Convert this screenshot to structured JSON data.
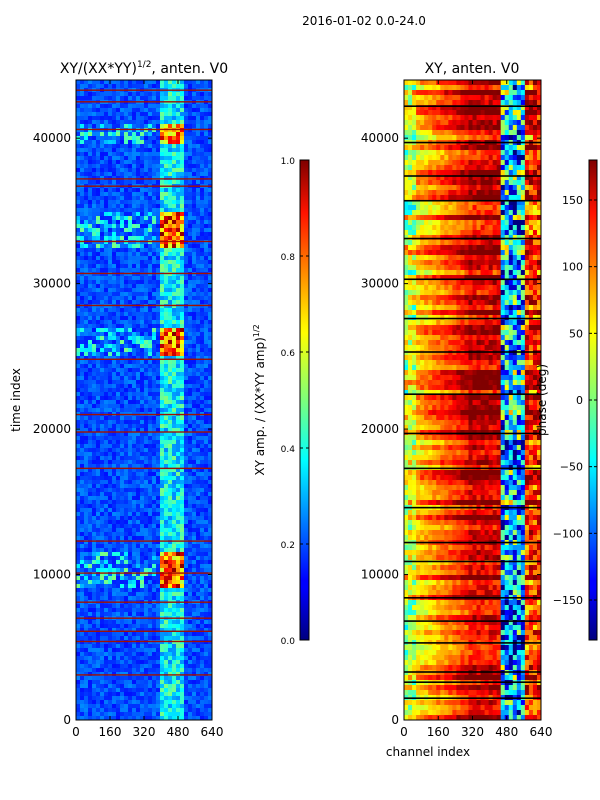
{
  "figure": {
    "suptitle": "2016-01-02 0.0-24.0"
  },
  "chart_data": [
    {
      "type": "heatmap",
      "title_main": "XY/(XX*YY)",
      "title_exp": "1/2",
      "title_tail": ", anten. V0",
      "xlabel": "",
      "ylabel": "time index",
      "xlim": [
        0,
        640
      ],
      "ylim": [
        0,
        44000
      ],
      "xticks": [
        0,
        160,
        320,
        480,
        640
      ],
      "yticks": [
        0,
        10000,
        20000,
        30000,
        40000
      ],
      "colormap": "jet",
      "colorbar": {
        "label_main": "XY amp. / (XX*YY amp)",
        "label_exp": "1/2",
        "range": [
          0.0,
          1.0
        ],
        "ticks": [
          "0.0",
          "0.2",
          "0.4",
          "0.6",
          "0.8",
          "1.0"
        ]
      },
      "band_channels": [
        [
          400,
          450
        ],
        [
          460,
          510
        ]
      ],
      "bright_time_ranges": [
        [
          9000,
          11500
        ],
        [
          32500,
          35000
        ],
        [
          39500,
          41000
        ],
        [
          25000,
          27000
        ]
      ],
      "flag_rows": [
        3100,
        5400,
        6100,
        7000,
        8100,
        10100,
        12300,
        17300,
        19800,
        21000,
        24800,
        28500,
        30700,
        32900,
        36700,
        37200,
        40600,
        42500,
        43300
      ]
    },
    {
      "type": "heatmap",
      "title": "XY, anten. V0",
      "xlabel": "channel index",
      "ylabel": "",
      "xlim": [
        0,
        640
      ],
      "ylim": [
        0,
        44000
      ],
      "xticks": [
        0,
        160,
        320,
        480,
        640
      ],
      "yticks": [
        0,
        10000,
        20000,
        30000,
        40000
      ],
      "colormap": "jet",
      "colorbar": {
        "label": "phase (deg)",
        "range": [
          -180,
          180
        ],
        "ticks": [
          "−150",
          "−100",
          "−50",
          "0",
          "50",
          "100",
          "150"
        ]
      },
      "flag_rows": [
        1500,
        2600,
        3300,
        5300,
        6800,
        8400,
        10900,
        12200,
        14600,
        17300,
        19700,
        22400,
        25300,
        27600,
        30300,
        33100,
        35700,
        37400,
        39700,
        42200
      ]
    }
  ]
}
